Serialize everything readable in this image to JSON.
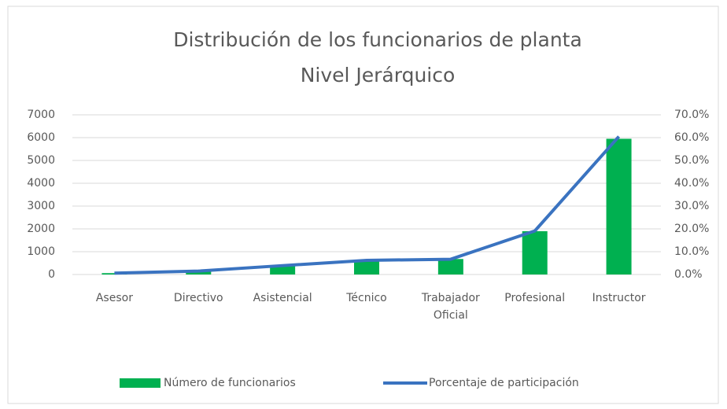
{
  "chart_data": {
    "type": "bar_line",
    "title": "Distribución de los funcionarios de planta",
    "subtitle": "Nivel Jerárquico",
    "categories": [
      "Asesor",
      "Directivo",
      "Asistencial",
      "Técnico",
      "Trabajador Oficial",
      "Profesional",
      "Instructor"
    ],
    "series": [
      {
        "name": "Número de funcionarios",
        "type": "bar",
        "color": "#00b050",
        "values": [
          60,
          150,
          380,
          650,
          680,
          1900,
          5950
        ]
      },
      {
        "name": "Porcentaje de participación",
        "type": "line",
        "axis": "y2",
        "color": "#3a73c0",
        "values": [
          0.6,
          1.5,
          3.9,
          6.2,
          6.7,
          19.1,
          60.5
        ]
      }
    ],
    "ylim": [
      0,
      7000
    ],
    "yticks": [
      0,
      1000,
      2000,
      3000,
      4000,
      5000,
      6000,
      7000
    ],
    "y2lim": [
      0,
      70
    ],
    "y2ticks": [
      {
        "value": 0,
        "label": "0.0%"
      },
      {
        "value": 10,
        "label": "10.0%"
      },
      {
        "value": 20,
        "label": "20.0%"
      },
      {
        "value": 30,
        "label": "30.0%"
      },
      {
        "value": 40,
        "label": "40.0%"
      },
      {
        "value": 50,
        "label": "50.0%"
      },
      {
        "value": 60,
        "label": "60.0%"
      },
      {
        "value": 70,
        "label": "70.0%"
      }
    ],
    "grid": true,
    "legend": "bottom"
  }
}
